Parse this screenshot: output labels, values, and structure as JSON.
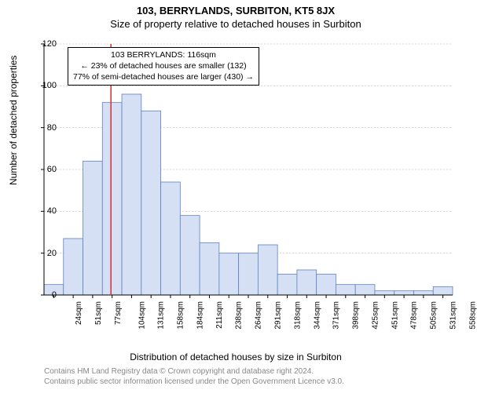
{
  "header": {
    "address": "103, BERRYLANDS, SURBITON, KT5 8JX",
    "subtitle": "Size of property relative to detached houses in Surbiton"
  },
  "annotation": {
    "line1": "103 BERRYLANDS: 116sqm",
    "line2": "← 23% of detached houses are smaller (132)",
    "line3": "77% of semi-detached houses are larger (430) →"
  },
  "chart": {
    "type": "histogram",
    "ylabel": "Number of detached properties",
    "xlabel": "Distribution of detached houses by size in Surbiton",
    "ylim": [
      0,
      120
    ],
    "ytick_step": 20,
    "yticks": [
      0,
      20,
      40,
      60,
      80,
      100,
      120
    ],
    "xticks": [
      "24sqm",
      "51sqm",
      "77sqm",
      "104sqm",
      "131sqm",
      "158sqm",
      "184sqm",
      "211sqm",
      "238sqm",
      "264sqm",
      "291sqm",
      "318sqm",
      "344sqm",
      "371sqm",
      "398sqm",
      "425sqm",
      "451sqm",
      "478sqm",
      "505sqm",
      "531sqm",
      "558sqm"
    ],
    "bar_values": [
      5,
      27,
      64,
      92,
      96,
      88,
      54,
      38,
      25,
      20,
      20,
      24,
      10,
      12,
      10,
      5,
      5,
      2,
      2,
      2,
      4
    ],
    "bar_fill": "#d5e0f4",
    "bar_stroke": "#6081c0",
    "grid_color": "#b0b0b0",
    "background_color": "#ffffff",
    "marker_line_color": "#d43030",
    "marker_bin_index": 3,
    "marker_fraction_in_bin": 0.44
  },
  "footer": {
    "line1": "Contains HM Land Registry data © Crown copyright and database right 2024.",
    "line2": "Contains public sector information licensed under the Open Government Licence v3.0."
  }
}
